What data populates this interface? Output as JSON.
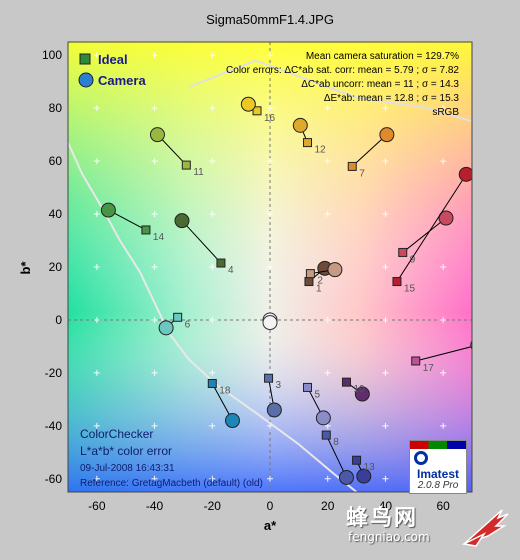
{
  "chart_data": {
    "type": "scatter",
    "title": "Sigma50mmF1.4.JPG",
    "xlabel": "a*",
    "ylabel": "b*",
    "xlim": [
      -70,
      70
    ],
    "ylim": [
      -65,
      105
    ],
    "x_ticks": [
      "-60",
      "-40",
      "-20",
      "0",
      "20",
      "40",
      "60"
    ],
    "y_ticks": [
      "100",
      "80",
      "60",
      "40",
      "20",
      "0",
      "-20",
      "-40",
      "-60"
    ],
    "grid": true,
    "legend": {
      "placement": "top-left",
      "ideal_label": "Ideal",
      "camera_label": "Camera"
    },
    "stats": [
      "Mean camera saturation = 129.7%",
      "Color errors: ΔC*ab sat. corr: mean = 5.79 ; σ = 7.82",
      "ΔC*ab uncorr: mean = 11 ; σ = 14.3",
      "ΔE*ab: mean = 12.8 ; σ = 15.3",
      "sRGB"
    ],
    "footer": {
      "line1": "ColorChecker",
      "line2": "L*a*b* color error",
      "date": "09-Jul-2008 16:43:31",
      "reference": "Reference: GretagMacbeth (default) (old)"
    },
    "patches": [
      {
        "label": "1",
        "ideal": [
          13.5,
          14.5
        ],
        "camera": [
          19,
          19.5
        ],
        "color": "#6e4a3a"
      },
      {
        "label": "2",
        "ideal": [
          14,
          17.5
        ],
        "camera": [
          22.5,
          19
        ],
        "color": "#c79a86"
      },
      {
        "label": "3",
        "ideal": [
          -0.5,
          -22
        ],
        "camera": [
          1.5,
          -34
        ],
        "color": "#5a6ea8"
      },
      {
        "label": "4",
        "ideal": [
          -17,
          21.5
        ],
        "camera": [
          -30.5,
          37.5
        ],
        "color": "#4a6a32"
      },
      {
        "label": "5",
        "ideal": [
          13,
          -25.5
        ],
        "camera": [
          18.5,
          -37
        ],
        "color": "#8a8cc8"
      },
      {
        "label": "6",
        "ideal": [
          -32,
          1
        ],
        "camera": [
          -36,
          -3
        ],
        "color": "#6ac8c0"
      },
      {
        "label": "7",
        "ideal": [
          28.5,
          58
        ],
        "camera": [
          40.5,
          70
        ],
        "color": "#e08a2c"
      },
      {
        "label": "8",
        "ideal": [
          19.5,
          -43.5
        ],
        "camera": [
          26.5,
          -59.5
        ],
        "color": "#4a5aa8"
      },
      {
        "label": "9",
        "ideal": [
          46,
          25.5
        ],
        "camera": [
          61,
          38.5
        ],
        "color": "#c84a60"
      },
      {
        "label": "10",
        "ideal": [
          26.5,
          -23.5
        ],
        "camera": [
          32,
          -28
        ],
        "color": "#5e2e6a"
      },
      {
        "label": "11",
        "ideal": [
          -29,
          58.5
        ],
        "camera": [
          -39,
          70
        ],
        "color": "#9ab840"
      },
      {
        "label": "12",
        "ideal": [
          13,
          67
        ],
        "camera": [
          10.5,
          73.5
        ],
        "color": "#e0a82a"
      },
      {
        "label": "13",
        "ideal": [
          30,
          -53
        ],
        "camera": [
          32.5,
          -59
        ],
        "color": "#3a3e98"
      },
      {
        "label": "14",
        "ideal": [
          -43,
          34
        ],
        "camera": [
          -56,
          41.5
        ],
        "color": "#4a9448"
      },
      {
        "label": "15",
        "ideal": [
          44,
          14.5
        ],
        "camera": [
          68,
          55
        ],
        "color": "#b81e2e"
      },
      {
        "label": "16",
        "ideal": [
          -4.5,
          79
        ],
        "camera": [
          -7.5,
          81.5
        ],
        "color": "#ecc824"
      },
      {
        "label": "17",
        "ideal": [
          50.5,
          -15.5
        ],
        "camera": [
          72,
          -9.5
        ],
        "color": "#c0509a"
      },
      {
        "label": "18",
        "ideal": [
          -20,
          -24
        ],
        "camera": [
          -13,
          -38
        ],
        "color": "#1c86b8"
      }
    ],
    "neutral_points": [
      [
        0,
        0
      ],
      [
        0,
        -1
      ]
    ]
  },
  "logo": {
    "brand": "Imatest",
    "version": "2.0.8  Pro"
  },
  "watermark": {
    "text": "蜂鸟网",
    "url": "fengniao.com"
  }
}
